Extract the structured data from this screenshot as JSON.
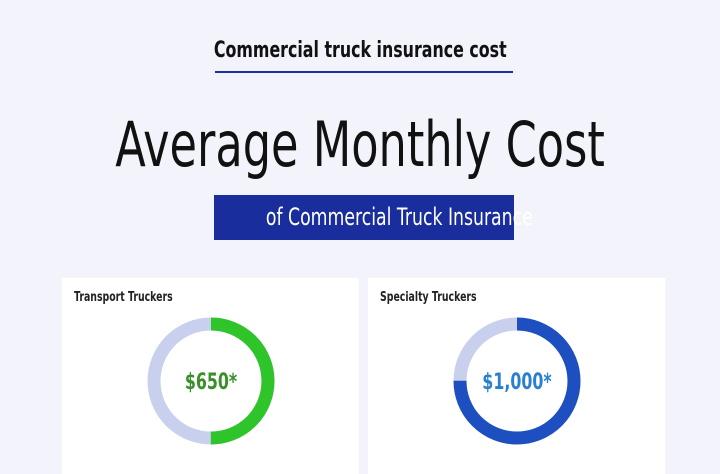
{
  "header": {
    "subtitle": "Commercial truck insurance cost",
    "title": "Average Monthly Cost",
    "band": "of Commercial Truck Insurance"
  },
  "colors": {
    "band": "#1a2d9c",
    "track": "#c8d0ee",
    "green": "#2fc42a",
    "blue": "#1e4fc0"
  },
  "chart_data": [
    {
      "type": "pie",
      "title": "Transport Truckers",
      "label": "$650*",
      "fill_fraction": 0.5,
      "color": "#2fc42a",
      "label_color": "#3a8f2a"
    },
    {
      "type": "pie",
      "title": "Specialty Truckers",
      "label": "$1,000*",
      "fill_fraction": 0.75,
      "color": "#1e4fc0",
      "label_color": "#2a7fd0"
    }
  ]
}
